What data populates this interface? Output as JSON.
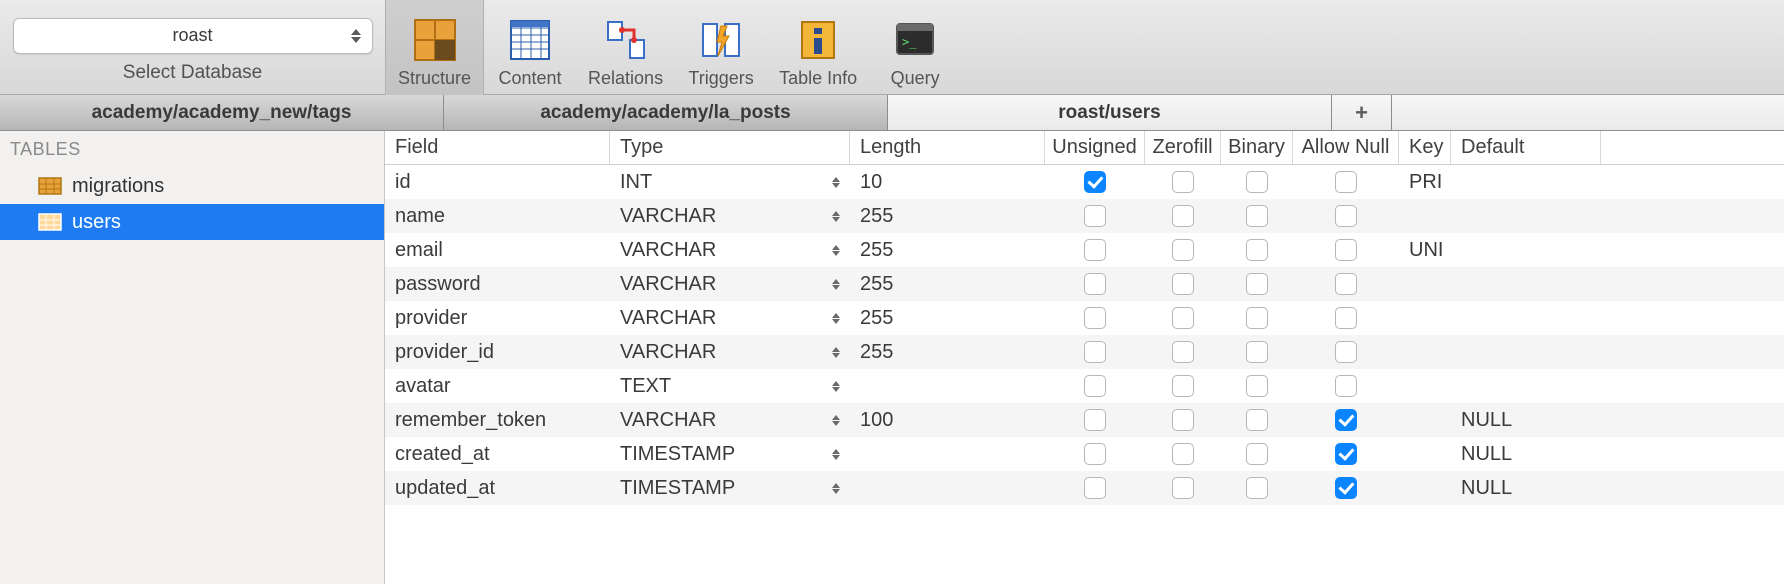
{
  "toolbar": {
    "database_select_value": "roast",
    "database_select_caption": "Select Database",
    "buttons": [
      {
        "id": "structure",
        "label": "Structure",
        "active": true
      },
      {
        "id": "content",
        "label": "Content",
        "active": false
      },
      {
        "id": "relations",
        "label": "Relations",
        "active": false
      },
      {
        "id": "triggers",
        "label": "Triggers",
        "active": false
      },
      {
        "id": "tableinfo",
        "label": "Table Info",
        "active": false
      },
      {
        "id": "query",
        "label": "Query",
        "active": false
      }
    ]
  },
  "tabs": [
    {
      "label": "academy/academy_new/tags",
      "active": false
    },
    {
      "label": "academy/academy/la_posts",
      "active": false
    },
    {
      "label": "roast/users",
      "active": true
    }
  ],
  "sidebar": {
    "header": "TABLES",
    "items": [
      {
        "label": "migrations",
        "selected": false
      },
      {
        "label": "users",
        "selected": true
      }
    ]
  },
  "grid": {
    "columns": [
      "Field",
      "Type",
      "Length",
      "Unsigned",
      "Zerofill",
      "Binary",
      "Allow Null",
      "Key",
      "Default"
    ],
    "rows": [
      {
        "field": "id",
        "type": "INT",
        "length": "10",
        "unsigned": true,
        "zerofill": false,
        "binary": false,
        "allow_null": false,
        "key": "PRI",
        "default": ""
      },
      {
        "field": "name",
        "type": "VARCHAR",
        "length": "255",
        "unsigned": false,
        "zerofill": false,
        "binary": false,
        "allow_null": false,
        "key": "",
        "default": ""
      },
      {
        "field": "email",
        "type": "VARCHAR",
        "length": "255",
        "unsigned": false,
        "zerofill": false,
        "binary": false,
        "allow_null": false,
        "key": "UNI",
        "default": ""
      },
      {
        "field": "password",
        "type": "VARCHAR",
        "length": "255",
        "unsigned": false,
        "zerofill": false,
        "binary": false,
        "allow_null": false,
        "key": "",
        "default": ""
      },
      {
        "field": "provider",
        "type": "VARCHAR",
        "length": "255",
        "unsigned": false,
        "zerofill": false,
        "binary": false,
        "allow_null": false,
        "key": "",
        "default": ""
      },
      {
        "field": "provider_id",
        "type": "VARCHAR",
        "length": "255",
        "unsigned": false,
        "zerofill": false,
        "binary": false,
        "allow_null": false,
        "key": "",
        "default": ""
      },
      {
        "field": "avatar",
        "type": "TEXT",
        "length": "",
        "unsigned": false,
        "zerofill": false,
        "binary": false,
        "allow_null": false,
        "key": "",
        "default": ""
      },
      {
        "field": "remember_token",
        "type": "VARCHAR",
        "length": "100",
        "unsigned": false,
        "zerofill": false,
        "binary": false,
        "allow_null": true,
        "key": "",
        "default": "NULL"
      },
      {
        "field": "created_at",
        "type": "TIMESTAMP",
        "length": "",
        "unsigned": false,
        "zerofill": false,
        "binary": false,
        "allow_null": true,
        "key": "",
        "default": "NULL"
      },
      {
        "field": "updated_at",
        "type": "TIMESTAMP",
        "length": "",
        "unsigned": false,
        "zerofill": false,
        "binary": false,
        "allow_null": true,
        "key": "",
        "default": "NULL"
      }
    ]
  },
  "colors": {
    "selection": "#1e7bf2",
    "checkbox_on": "#0a84ff",
    "toolbar_bg_top": "#eaeaea",
    "toolbar_bg_bottom": "#d8d8d8"
  }
}
